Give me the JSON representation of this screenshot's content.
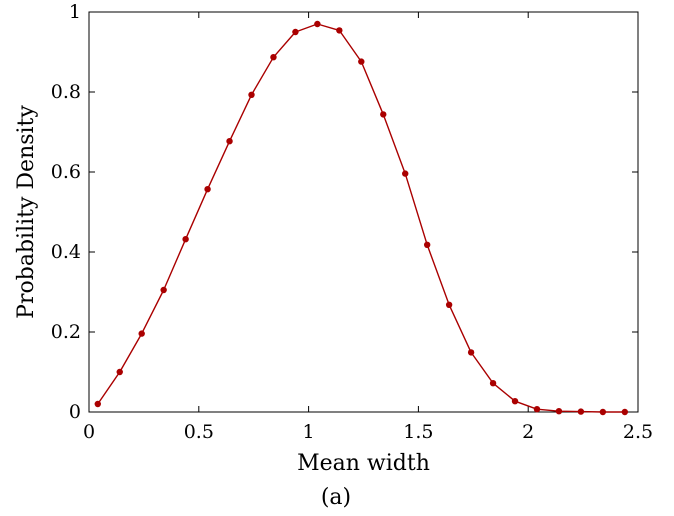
{
  "chart_data": {
    "type": "line",
    "xlabel": "Mean width",
    "ylabel": "Probability Density",
    "caption": "(a)",
    "xlim": [
      0,
      2.5
    ],
    "ylim": [
      0,
      1
    ],
    "xticks": [
      0,
      0.5,
      1,
      1.5,
      2,
      2.5
    ],
    "xtick_labels": [
      "0",
      "0.5",
      "1",
      "1.5",
      "2",
      "2.5"
    ],
    "yticks": [
      0,
      0.2,
      0.4,
      0.6,
      0.8,
      1
    ],
    "ytick_labels": [
      "0",
      "0.2",
      "0.4",
      "0.6",
      "0.8",
      "1"
    ],
    "grid": false,
    "series": [
      {
        "color": "#aa0000",
        "marker": "circle",
        "x": [
          0.04,
          0.14,
          0.24,
          0.34,
          0.44,
          0.54,
          0.64,
          0.74,
          0.84,
          0.94,
          1.04,
          1.14,
          1.24,
          1.34,
          1.44,
          1.54,
          1.64,
          1.74,
          1.84,
          1.94,
          2.04,
          2.14,
          2.24,
          2.34,
          2.44
        ],
        "y": [
          0.02,
          0.1,
          0.196,
          0.305,
          0.432,
          0.557,
          0.677,
          0.793,
          0.887,
          0.95,
          0.97,
          0.954,
          0.876,
          0.744,
          0.596,
          0.418,
          0.268,
          0.149,
          0.072,
          0.027,
          0.007,
          0.002,
          0.001,
          0.0,
          0.0
        ]
      }
    ]
  }
}
